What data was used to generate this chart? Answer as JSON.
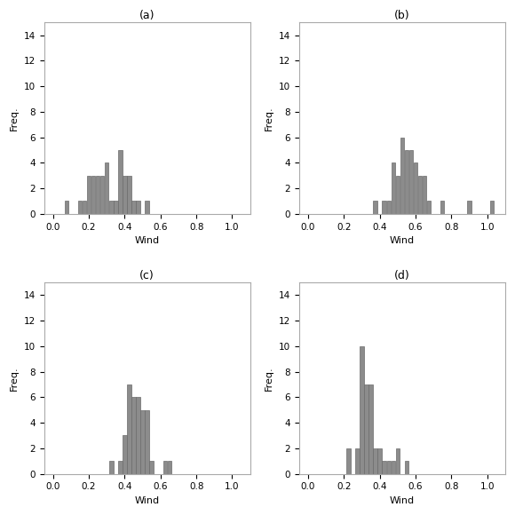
{
  "subplots": [
    {
      "label": "(a)",
      "bar_centers": [
        0.075,
        0.125,
        0.15,
        0.175,
        0.2,
        0.225,
        0.25,
        0.275,
        0.3,
        0.325,
        0.35,
        0.375,
        0.4,
        0.425,
        0.45,
        0.475,
        0.5,
        0.525,
        0.55
      ],
      "bar_heights": [
        1,
        0,
        1,
        1,
        3,
        3,
        3,
        3,
        4,
        1,
        1,
        5,
        3,
        3,
        1,
        1,
        0,
        1,
        0
      ],
      "xlim": [
        -0.05,
        1.1
      ],
      "ylim": [
        0,
        15
      ],
      "xticks": [
        0.0,
        0.2,
        0.4,
        0.6,
        0.8,
        1.0
      ],
      "yticks": [
        0,
        2,
        4,
        6,
        8,
        10,
        12,
        14
      ]
    },
    {
      "label": "(b)",
      "bar_centers": [
        0.375,
        0.4,
        0.425,
        0.45,
        0.475,
        0.5,
        0.525,
        0.55,
        0.575,
        0.6,
        0.625,
        0.65,
        0.675,
        0.7,
        0.75,
        0.9,
        1.025
      ],
      "bar_heights": [
        1,
        0,
        1,
        1,
        4,
        3,
        6,
        5,
        5,
        4,
        3,
        3,
        1,
        0,
        1,
        1,
        1
      ],
      "xlim": [
        -0.05,
        1.1
      ],
      "ylim": [
        0,
        15
      ],
      "xticks": [
        0.0,
        0.2,
        0.4,
        0.6,
        0.8,
        1.0
      ],
      "yticks": [
        0,
        2,
        4,
        6,
        8,
        10,
        12,
        14
      ]
    },
    {
      "label": "(c)",
      "bar_centers": [
        0.325,
        0.35,
        0.375,
        0.4,
        0.425,
        0.45,
        0.475,
        0.5,
        0.525,
        0.55,
        0.575,
        0.625,
        0.65
      ],
      "bar_heights": [
        1,
        0,
        1,
        3,
        7,
        6,
        6,
        5,
        5,
        1,
        0,
        1,
        1
      ],
      "xlim": [
        -0.05,
        1.1
      ],
      "ylim": [
        0,
        15
      ],
      "xticks": [
        0.0,
        0.2,
        0.4,
        0.6,
        0.8,
        1.0
      ],
      "yticks": [
        0,
        2,
        4,
        6,
        8,
        10,
        12,
        14
      ]
    },
    {
      "label": "(d)",
      "bar_centers": [
        0.225,
        0.25,
        0.275,
        0.3,
        0.325,
        0.35,
        0.375,
        0.4,
        0.425,
        0.45,
        0.475,
        0.5,
        0.55
      ],
      "bar_heights": [
        2,
        0,
        2,
        10,
        7,
        7,
        2,
        2,
        1,
        1,
        1,
        2,
        1
      ],
      "xlim": [
        -0.05,
        1.1
      ],
      "ylim": [
        0,
        15
      ],
      "xticks": [
        0.0,
        0.2,
        0.4,
        0.6,
        0.8,
        1.0
      ],
      "yticks": [
        0,
        2,
        4,
        6,
        8,
        10,
        12,
        14
      ]
    }
  ],
  "bar_color": "#8c8c8c",
  "bar_edgecolor": "#6a6a6a",
  "bar_width": 0.022,
  "xlabel": "Wind",
  "ylabel": "Freq.",
  "background_color": "#ffffff",
  "title_fontsize": 9,
  "axis_fontsize": 8,
  "tick_fontsize": 7.5,
  "fig_width": 5.8,
  "fig_height": 5.8
}
